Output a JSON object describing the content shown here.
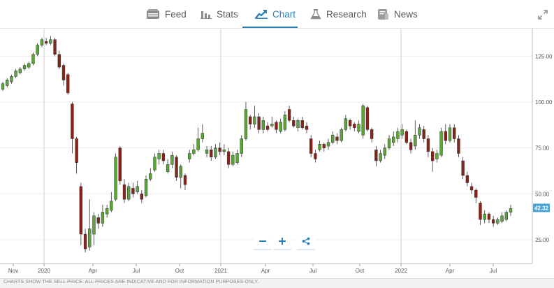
{
  "tabs": [
    {
      "label": "Feed",
      "icon": "feed-icon",
      "active": false
    },
    {
      "label": "Stats",
      "icon": "stats-icon",
      "active": false
    },
    {
      "label": "Chart",
      "icon": "chart-icon",
      "active": true
    },
    {
      "label": "Research",
      "icon": "flask-icon",
      "active": false
    },
    {
      "label": "News",
      "icon": "news-icon",
      "active": false
    }
  ],
  "toolbar": {
    "expand_icon": "expand-icon",
    "zoom_out_icon": "minus-icon",
    "zoom_in_icon": "plus-icon",
    "share_icon": "share-icon"
  },
  "footer": {
    "disclaimer": "CHARTS SHOW THE SELL PRICE. ALL PRICES ARE INDICATIVE AND FOR INFORMATION PURPOSES ONLY."
  },
  "colors": {
    "up": "#5aa638",
    "down": "#8b2218",
    "accent": "#2a80b9",
    "price_badge": "#4aa3d8"
  },
  "chart_data": {
    "type": "candlestick",
    "y_ticks": [
      "125.00",
      "100.00",
      "75.00",
      "50.00",
      "25.00"
    ],
    "y_tick_values": [
      125,
      100,
      75,
      50,
      25
    ],
    "ylim": [
      12,
      140
    ],
    "x_ticks": [
      "Nov",
      "2020",
      "Apr",
      "Jul",
      "Oct",
      "2021",
      "Apr",
      "Jul",
      "Oct",
      "2022",
      "Apr",
      "Jul"
    ],
    "year_markers": [
      "2020",
      "2021",
      "2022"
    ],
    "current_price": "42.32",
    "current_price_value": 42.32,
    "candles": [
      {
        "o": 107,
        "c": 110,
        "h": 111,
        "l": 106
      },
      {
        "o": 109,
        "c": 112,
        "h": 113,
        "l": 108
      },
      {
        "o": 111,
        "c": 114,
        "h": 115,
        "l": 110
      },
      {
        "o": 114,
        "c": 117,
        "h": 118,
        "l": 113
      },
      {
        "o": 116,
        "c": 118,
        "h": 119,
        "l": 115
      },
      {
        "o": 118,
        "c": 120,
        "h": 121,
        "l": 117
      },
      {
        "o": 119,
        "c": 121,
        "h": 122,
        "l": 118
      },
      {
        "o": 121,
        "c": 126,
        "h": 127,
        "l": 120
      },
      {
        "o": 126,
        "c": 131,
        "h": 132,
        "l": 125
      },
      {
        "o": 131,
        "c": 134,
        "h": 135,
        "l": 130
      },
      {
        "o": 133,
        "c": 132,
        "h": 135,
        "l": 131
      },
      {
        "o": 132,
        "c": 134,
        "h": 136,
        "l": 131
      },
      {
        "o": 134,
        "c": 126,
        "h": 135,
        "l": 125
      },
      {
        "o": 126,
        "c": 119,
        "h": 128,
        "l": 118
      },
      {
        "o": 120,
        "c": 112,
        "h": 121,
        "l": 109
      },
      {
        "o": 115,
        "c": 105,
        "h": 116,
        "l": 104
      },
      {
        "o": 99,
        "c": 80,
        "h": 100,
        "l": 72
      },
      {
        "o": 80,
        "c": 67,
        "h": 81,
        "l": 61
      },
      {
        "o": 54,
        "c": 28,
        "h": 56,
        "l": 22
      },
      {
        "o": 28,
        "c": 20,
        "h": 31,
        "l": 18
      },
      {
        "o": 21,
        "c": 31,
        "h": 47,
        "l": 19
      },
      {
        "o": 28,
        "c": 38,
        "h": 40,
        "l": 22
      },
      {
        "o": 37,
        "c": 34,
        "h": 39,
        "l": 31
      },
      {
        "o": 34,
        "c": 40,
        "h": 44,
        "l": 32
      },
      {
        "o": 39,
        "c": 42,
        "h": 44,
        "l": 37
      },
      {
        "o": 41,
        "c": 46,
        "h": 51,
        "l": 40
      },
      {
        "o": 47,
        "c": 70,
        "h": 72,
        "l": 46
      },
      {
        "o": 75,
        "c": 57,
        "h": 76,
        "l": 55
      },
      {
        "o": 55,
        "c": 47,
        "h": 58,
        "l": 45
      },
      {
        "o": 47,
        "c": 54,
        "h": 56,
        "l": 46
      },
      {
        "o": 53,
        "c": 50,
        "h": 56,
        "l": 48
      },
      {
        "o": 51,
        "c": 54,
        "h": 57,
        "l": 50
      },
      {
        "o": 50,
        "c": 47,
        "h": 52,
        "l": 45
      },
      {
        "o": 49,
        "c": 58,
        "h": 60,
        "l": 48
      },
      {
        "o": 58,
        "c": 61,
        "h": 64,
        "l": 57
      },
      {
        "o": 63,
        "c": 70,
        "h": 72,
        "l": 62
      },
      {
        "o": 69,
        "c": 72,
        "h": 74,
        "l": 66
      },
      {
        "o": 72,
        "c": 68,
        "h": 74,
        "l": 66
      },
      {
        "o": 62,
        "c": 66,
        "h": 69,
        "l": 61
      },
      {
        "o": 66,
        "c": 71,
        "h": 73,
        "l": 64
      },
      {
        "o": 70,
        "c": 59,
        "h": 71,
        "l": 57
      },
      {
        "o": 59,
        "c": 65,
        "h": 66,
        "l": 53
      },
      {
        "o": 60,
        "c": 55,
        "h": 61,
        "l": 52
      },
      {
        "o": 69,
        "c": 72,
        "h": 74,
        "l": 67
      },
      {
        "o": 72,
        "c": 74,
        "h": 77,
        "l": 71
      },
      {
        "o": 74,
        "c": 80,
        "h": 86,
        "l": 73
      },
      {
        "o": 80,
        "c": 83,
        "h": 88,
        "l": 78
      },
      {
        "o": 72,
        "c": 74,
        "h": 76,
        "l": 70
      },
      {
        "o": 74,
        "c": 70,
        "h": 76,
        "l": 68
      },
      {
        "o": 70,
        "c": 75,
        "h": 77,
        "l": 69
      },
      {
        "o": 75,
        "c": 73,
        "h": 78,
        "l": 71
      },
      {
        "o": 73,
        "c": 74,
        "h": 77,
        "l": 71
      },
      {
        "o": 73,
        "c": 66,
        "h": 75,
        "l": 64
      },
      {
        "o": 66,
        "c": 71,
        "h": 73,
        "l": 65
      },
      {
        "o": 67,
        "c": 72,
        "h": 74,
        "l": 66
      },
      {
        "o": 72,
        "c": 80,
        "h": 82,
        "l": 70
      },
      {
        "o": 80,
        "c": 96,
        "h": 100,
        "l": 79
      },
      {
        "o": 92,
        "c": 88,
        "h": 93,
        "l": 85
      },
      {
        "o": 88,
        "c": 92,
        "h": 98,
        "l": 86
      },
      {
        "o": 92,
        "c": 85,
        "h": 94,
        "l": 83
      },
      {
        "o": 85,
        "c": 90,
        "h": 92,
        "l": 83
      },
      {
        "o": 87,
        "c": 85,
        "h": 89,
        "l": 84
      },
      {
        "o": 87,
        "c": 88,
        "h": 92,
        "l": 86
      },
      {
        "o": 89,
        "c": 85,
        "h": 90,
        "l": 83
      },
      {
        "o": 84,
        "c": 89,
        "h": 91,
        "l": 83
      },
      {
        "o": 85,
        "c": 93,
        "h": 95,
        "l": 84
      },
      {
        "o": 96,
        "c": 90,
        "h": 98,
        "l": 89
      },
      {
        "o": 90,
        "c": 87,
        "h": 92,
        "l": 86
      },
      {
        "o": 86,
        "c": 90,
        "h": 91,
        "l": 84
      },
      {
        "o": 90,
        "c": 86,
        "h": 92,
        "l": 85
      },
      {
        "o": 87,
        "c": 85,
        "h": 89,
        "l": 83
      },
      {
        "o": 80,
        "c": 72,
        "h": 82,
        "l": 70
      },
      {
        "o": 72,
        "c": 69,
        "h": 74,
        "l": 67
      },
      {
        "o": 74,
        "c": 77,
        "h": 79,
        "l": 73
      },
      {
        "o": 77,
        "c": 75,
        "h": 78,
        "l": 73
      },
      {
        "o": 76,
        "c": 78,
        "h": 80,
        "l": 74
      },
      {
        "o": 78,
        "c": 82,
        "h": 84,
        "l": 77
      },
      {
        "o": 81,
        "c": 79,
        "h": 83,
        "l": 77
      },
      {
        "o": 79,
        "c": 85,
        "h": 86,
        "l": 78
      },
      {
        "o": 85,
        "c": 91,
        "h": 93,
        "l": 84
      },
      {
        "o": 90,
        "c": 87,
        "h": 91,
        "l": 85
      },
      {
        "o": 88,
        "c": 86,
        "h": 89,
        "l": 84
      },
      {
        "o": 84,
        "c": 88,
        "h": 90,
        "l": 83
      },
      {
        "o": 82,
        "c": 98,
        "h": 99,
        "l": 80
      },
      {
        "o": 97,
        "c": 85,
        "h": 98,
        "l": 84
      },
      {
        "o": 85,
        "c": 80,
        "h": 86,
        "l": 78
      },
      {
        "o": 74,
        "c": 68,
        "h": 76,
        "l": 65
      },
      {
        "o": 68,
        "c": 72,
        "h": 74,
        "l": 67
      },
      {
        "o": 71,
        "c": 75,
        "h": 77,
        "l": 69
      },
      {
        "o": 75,
        "c": 80,
        "h": 82,
        "l": 74
      },
      {
        "o": 78,
        "c": 81,
        "h": 84,
        "l": 76
      },
      {
        "o": 80,
        "c": 84,
        "h": 86,
        "l": 78
      },
      {
        "o": 82,
        "c": 85,
        "h": 88,
        "l": 80
      },
      {
        "o": 84,
        "c": 78,
        "h": 85,
        "l": 77
      },
      {
        "o": 78,
        "c": 74,
        "h": 80,
        "l": 72
      },
      {
        "o": 76,
        "c": 82,
        "h": 90,
        "l": 74
      },
      {
        "o": 82,
        "c": 86,
        "h": 88,
        "l": 80
      },
      {
        "o": 85,
        "c": 80,
        "h": 87,
        "l": 78
      },
      {
        "o": 80,
        "c": 73,
        "h": 82,
        "l": 70
      },
      {
        "o": 73,
        "c": 68,
        "h": 75,
        "l": 62
      },
      {
        "o": 69,
        "c": 72,
        "h": 74,
        "l": 67
      },
      {
        "o": 71,
        "c": 84,
        "h": 86,
        "l": 70
      },
      {
        "o": 84,
        "c": 79,
        "h": 88,
        "l": 77
      },
      {
        "o": 79,
        "c": 86,
        "h": 88,
        "l": 78
      },
      {
        "o": 86,
        "c": 80,
        "h": 88,
        "l": 78
      },
      {
        "o": 80,
        "c": 72,
        "h": 82,
        "l": 70
      },
      {
        "o": 68,
        "c": 60,
        "h": 70,
        "l": 58
      },
      {
        "o": 60,
        "c": 56,
        "h": 62,
        "l": 54
      },
      {
        "o": 54,
        "c": 52,
        "h": 56,
        "l": 50
      },
      {
        "o": 52,
        "c": 48,
        "h": 53,
        "l": 45
      },
      {
        "o": 45,
        "c": 36,
        "h": 46,
        "l": 33
      },
      {
        "o": 36,
        "c": 39,
        "h": 41,
        "l": 34
      },
      {
        "o": 39,
        "c": 36,
        "h": 40,
        "l": 34
      },
      {
        "o": 36,
        "c": 34,
        "h": 38,
        "l": 32
      },
      {
        "o": 34,
        "c": 36,
        "h": 37,
        "l": 33
      },
      {
        "o": 35,
        "c": 38,
        "h": 40,
        "l": 34
      },
      {
        "o": 36,
        "c": 40,
        "h": 41,
        "l": 35
      },
      {
        "o": 40,
        "c": 42,
        "h": 44,
        "l": 38
      }
    ]
  }
}
